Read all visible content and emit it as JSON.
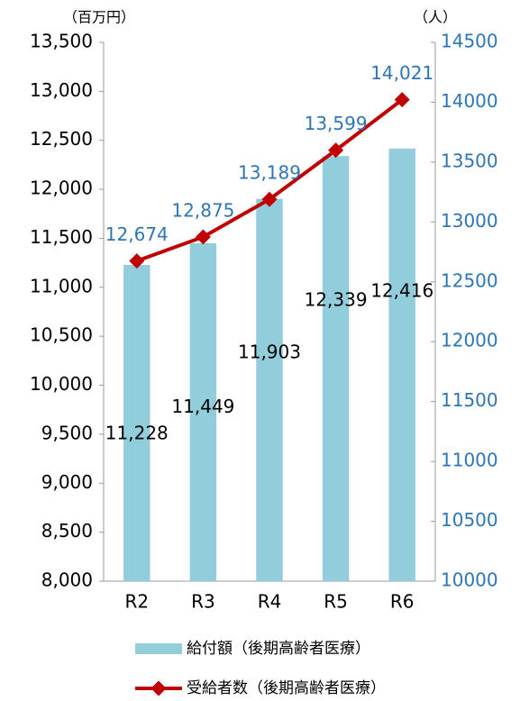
{
  "chart_data": {
    "type": "combo",
    "y_label": "（百万円）",
    "y2_label": "（人）",
    "categories": [
      "R2",
      "R3",
      "R4",
      "R5",
      "R6"
    ],
    "series": [
      {
        "name": "給付額（後期高齢者医療）",
        "type": "bar",
        "color": "#92cddc",
        "values": [
          11228,
          11449,
          11903,
          12339,
          12416
        ],
        "value_labels": [
          "11,228",
          "11,449",
          "11,903",
          "12,339",
          "12,416"
        ]
      },
      {
        "name": "受給者数（後期高齢者医療）",
        "type": "line",
        "axis": "y2",
        "color": "#c00000",
        "values": [
          12674,
          12875,
          13189,
          13599,
          14021
        ],
        "value_labels": [
          "12,674",
          "12,875",
          "13,189",
          "13,599",
          "14,021"
        ]
      }
    ],
    "ylim": [
      8000,
      13500
    ],
    "yticks": [
      {
        "value": 8000,
        "label": "8,000"
      },
      {
        "value": 8500,
        "label": "8,500"
      },
      {
        "value": 9000,
        "label": "9,000"
      },
      {
        "value": 9500,
        "label": "9,500"
      },
      {
        "value": 10000,
        "label": "10,000"
      },
      {
        "value": 10500,
        "label": "10,500"
      },
      {
        "value": 11000,
        "label": "11,000"
      },
      {
        "value": 11500,
        "label": "11,500"
      },
      {
        "value": 12000,
        "label": "12,000"
      },
      {
        "value": 12500,
        "label": "12,500"
      },
      {
        "value": 13000,
        "label": "13,000"
      },
      {
        "value": 13500,
        "label": "13,500"
      }
    ],
    "y2lim": [
      10000,
      14500
    ],
    "y2ticks": [
      10000,
      10500,
      11000,
      11500,
      12000,
      12500,
      13000,
      13500,
      14000,
      14500
    ],
    "y2_color": "#2e75b6",
    "grid": false
  }
}
